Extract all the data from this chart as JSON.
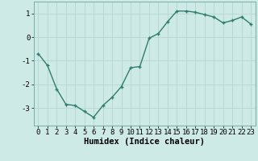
{
  "x": [
    0,
    1,
    2,
    3,
    4,
    5,
    6,
    7,
    8,
    9,
    10,
    11,
    12,
    13,
    14,
    15,
    16,
    17,
    18,
    19,
    20,
    21,
    22,
    23
  ],
  "y": [
    -0.7,
    -1.2,
    -2.2,
    -2.85,
    -2.9,
    -3.15,
    -3.4,
    -2.9,
    -2.55,
    -2.1,
    -1.3,
    -1.25,
    -0.05,
    0.15,
    0.65,
    1.1,
    1.1,
    1.05,
    0.95,
    0.85,
    0.6,
    0.7,
    0.85,
    0.55
  ],
  "line_color": "#2e7d6e",
  "marker": "+",
  "marker_size": 3,
  "marker_lw": 1.0,
  "line_width": 1.0,
  "xlabel": "Humidex (Indice chaleur)",
  "xlim": [
    -0.5,
    23.5
  ],
  "ylim": [
    -3.75,
    1.5
  ],
  "yticks": [
    -3,
    -2,
    -1,
    0,
    1
  ],
  "xticks": [
    0,
    1,
    2,
    3,
    4,
    5,
    6,
    7,
    8,
    9,
    10,
    11,
    12,
    13,
    14,
    15,
    16,
    17,
    18,
    19,
    20,
    21,
    22,
    23
  ],
  "bg_color": "#ceeae6",
  "grid_color": "#b8d8d4",
  "xlabel_fontsize": 7.5,
  "tick_fontsize": 6.5
}
